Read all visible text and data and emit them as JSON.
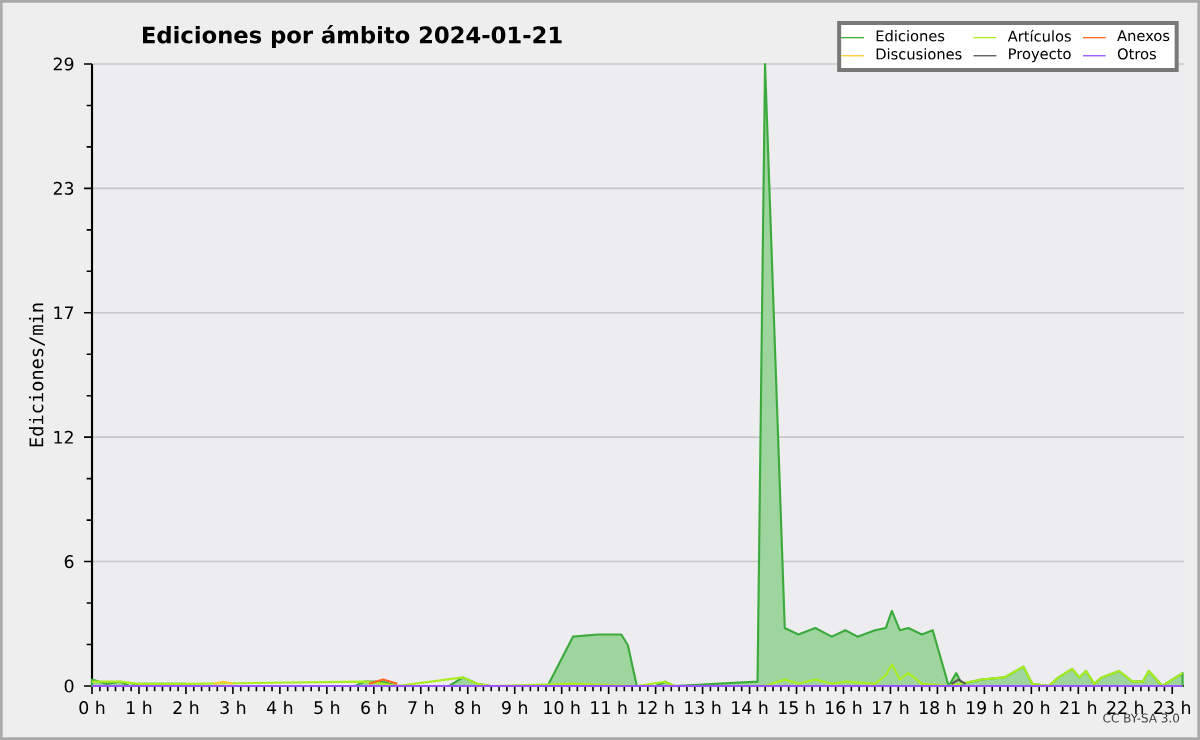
{
  "chart_data": {
    "type": "area",
    "title": "Ediciones por ámbito  2024-01-21",
    "ylabel": "Ediciones/min",
    "xlim": [
      0,
      23.25
    ],
    "ylim": [
      0,
      29
    ],
    "xticks": [
      {
        "value": 0,
        "label": "0 h"
      },
      {
        "value": 1,
        "label": "1 h"
      },
      {
        "value": 2,
        "label": "2 h"
      },
      {
        "value": 3,
        "label": "3 h"
      },
      {
        "value": 4,
        "label": "4 h"
      },
      {
        "value": 5,
        "label": "5 h"
      },
      {
        "value": 6,
        "label": "6 h"
      },
      {
        "value": 7,
        "label": "7 h"
      },
      {
        "value": 8,
        "label": "8 h"
      },
      {
        "value": 9,
        "label": "9 h"
      },
      {
        "value": 10,
        "label": "10 h"
      },
      {
        "value": 11,
        "label": "11 h"
      },
      {
        "value": 12,
        "label": "12 h"
      },
      {
        "value": 13,
        "label": "13 h"
      },
      {
        "value": 14,
        "label": "14 h"
      },
      {
        "value": 15,
        "label": "15 h"
      },
      {
        "value": 16,
        "label": "16 h"
      },
      {
        "value": 17,
        "label": "17 h"
      },
      {
        "value": 18,
        "label": "18 h"
      },
      {
        "value": 19,
        "label": "19 h"
      },
      {
        "value": 20,
        "label": "20 h"
      },
      {
        "value": 21,
        "label": "21 h"
      },
      {
        "value": 22,
        "label": "22 h"
      },
      {
        "value": 23,
        "label": "23 h"
      }
    ],
    "yticks": [
      0,
      {
        "value": 5.8,
        "label": "6"
      },
      {
        "value": 11.6,
        "label": "12"
      },
      {
        "value": 17.4,
        "label": "17"
      },
      {
        "value": 23.2,
        "label": "23"
      },
      29
    ],
    "grid": "y",
    "legend": "top right",
    "annotations": [
      "CC BY-SA 3.0"
    ],
    "series": [
      {
        "name": "Ediciones",
        "color": "#3daa3d",
        "x": [
          0,
          0.3,
          0.6,
          0.8,
          1,
          2,
          2.1,
          5.6,
          5.8,
          6.2,
          6.5,
          7.6,
          7.9,
          8.2,
          8.5,
          9.7,
          10.24,
          10.77,
          11.27,
          11.41,
          11.6,
          12.0,
          12.2,
          12.4,
          14.17,
          14.33,
          14.75,
          15.04,
          15.4,
          15.75,
          16.04,
          16.3,
          16.67,
          16.9,
          17.03,
          17.2,
          17.38,
          17.67,
          17.9,
          18.24,
          18.4,
          18.52,
          18.94,
          19.43,
          19.83,
          20.02,
          20.37,
          20.58,
          20.87,
          21.02,
          21.16,
          21.34,
          21.5,
          21.87,
          22.15,
          22.37,
          22.5,
          22.79,
          23.0,
          23.22
        ],
        "values": [
          0.3,
          0.1,
          0.2,
          0,
          0.1,
          0.1,
          0,
          0,
          0.2,
          0.2,
          0,
          0,
          0.4,
          0.1,
          0,
          0,
          2.3,
          2.4,
          2.4,
          1.9,
          0,
          0,
          0.2,
          0,
          0.2,
          29,
          2.7,
          2.4,
          2.7,
          2.3,
          2.6,
          2.3,
          2.6,
          2.7,
          3.5,
          2.6,
          2.7,
          2.4,
          2.6,
          0,
          0.6,
          0.1,
          0.3,
          0.4,
          0.9,
          0.1,
          0,
          0.4,
          0.8,
          0.4,
          0.7,
          0.1,
          0.4,
          0.7,
          0.2,
          0.2,
          0.7,
          0,
          0.3,
          0.6
        ]
      },
      {
        "name": "Artículos",
        "type": "line",
        "color": "#aaee22",
        "x": [
          0,
          0.6,
          1,
          2,
          5.8,
          6.2,
          6.5,
          7.9,
          8.2,
          8.5,
          10.24,
          11.6,
          12.2,
          12.4,
          14.33,
          14.75,
          15.04,
          15.4,
          15.75,
          16.04,
          16.67,
          16.9,
          17.03,
          17.2,
          17.38,
          17.67,
          18.24,
          18.94,
          19.43,
          19.83,
          20.02,
          20.37,
          20.58,
          20.87,
          21.02,
          21.16,
          21.34,
          21.5,
          21.87,
          22.15,
          22.37,
          22.5,
          22.79,
          23.0,
          23.22
        ],
        "values": [
          0.2,
          0.2,
          0.1,
          0.1,
          0.2,
          0.1,
          0,
          0.4,
          0.1,
          0,
          0.1,
          0,
          0.2,
          0,
          0,
          0.3,
          0.1,
          0.3,
          0.1,
          0.2,
          0.1,
          0.5,
          1.0,
          0.3,
          0.6,
          0.1,
          0,
          0.3,
          0.4,
          0.9,
          0.1,
          0,
          0.4,
          0.8,
          0.4,
          0.7,
          0.1,
          0.4,
          0.7,
          0.2,
          0.2,
          0.7,
          0,
          0.3,
          0.6
        ]
      },
      {
        "name": "Anexos",
        "type": "line",
        "color": "#ff6622",
        "x": [
          5.9,
          6.2,
          6.5
        ],
        "values": [
          0.1,
          0.3,
          0.1
        ]
      },
      {
        "name": "Discusiones",
        "type": "line",
        "color": "#ffcc33",
        "x": [
          2.6,
          2.8,
          3.0
        ],
        "values": [
          0.1,
          0.2,
          0.1
        ]
      },
      {
        "name": "Proyecto",
        "type": "line",
        "color": "#555555",
        "x": [
          18.3,
          18.45,
          18.6
        ],
        "values": [
          0.1,
          0.3,
          0.1
        ]
      },
      {
        "name": "Otros",
        "type": "line",
        "color": "#9955ff",
        "x": [
          0,
          23.22
        ],
        "values": [
          0,
          0
        ]
      }
    ]
  }
}
